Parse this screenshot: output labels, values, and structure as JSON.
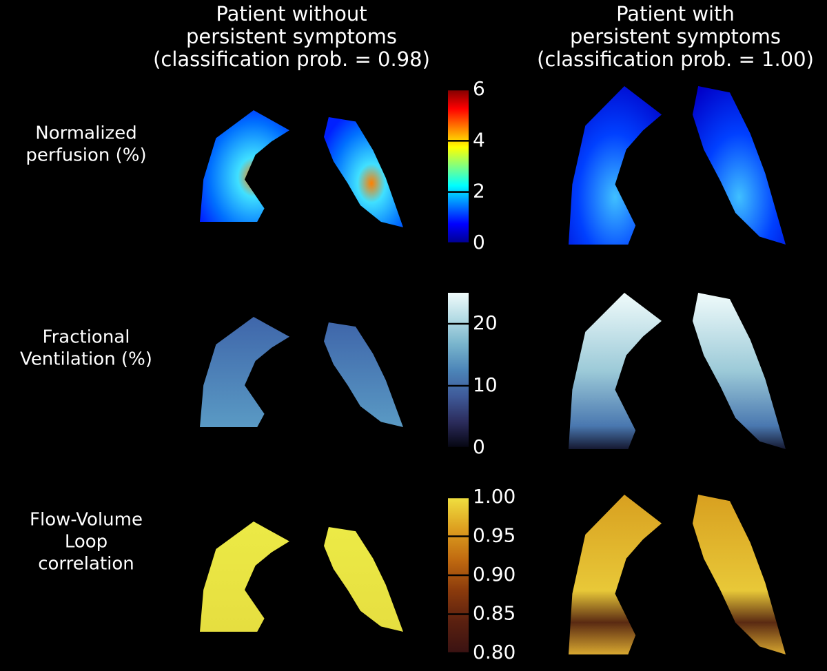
{
  "columns": [
    {
      "title_lines": [
        "Patient without",
        "persistent symptoms",
        "(classification prob. = 0.98)"
      ]
    },
    {
      "title_lines": [
        "Patient with",
        "persistent symptoms",
        "(classification prob. = 1.00)"
      ]
    }
  ],
  "rows": [
    {
      "label_lines": [
        "Normalized",
        "perfusion (%)"
      ],
      "colorbar": {
        "lim": [
          0,
          6
        ],
        "ticks": [
          0,
          2,
          4,
          6
        ],
        "colors": [
          "#00008f",
          "#0000ff",
          "#0080ff",
          "#00ffff",
          "#80ff80",
          "#ffff00",
          "#ff8000",
          "#ff0000",
          "#800000"
        ]
      }
    },
    {
      "label_lines": [
        "Fractional",
        "Ventilation (%)"
      ],
      "colorbar": {
        "lim": [
          0,
          25
        ],
        "ticks": [
          0,
          10,
          20
        ],
        "colors": [
          "#050510",
          "#2b2c5c",
          "#3f5a99",
          "#4c85b8",
          "#78b4cc",
          "#b4dbe4",
          "#f0fbfb"
        ]
      }
    },
    {
      "label_lines": [
        "Flow-Volume",
        "Loop",
        "correlation"
      ],
      "colorbar": {
        "lim": [
          0.8,
          1.0
        ],
        "ticks": [
          {
            "value": 0.8,
            "label": "0.80"
          },
          {
            "value": 0.85,
            "label": "0.85"
          },
          {
            "value": 0.9,
            "label": "0.90"
          },
          {
            "value": 0.95,
            "label": "0.95"
          },
          {
            "value": 1.0,
            "label": "1.00"
          }
        ],
        "colors": [
          "#3a1212",
          "#5a2010",
          "#8a3a0c",
          "#c06a10",
          "#dda020",
          "#f0e040"
        ]
      }
    }
  ]
}
